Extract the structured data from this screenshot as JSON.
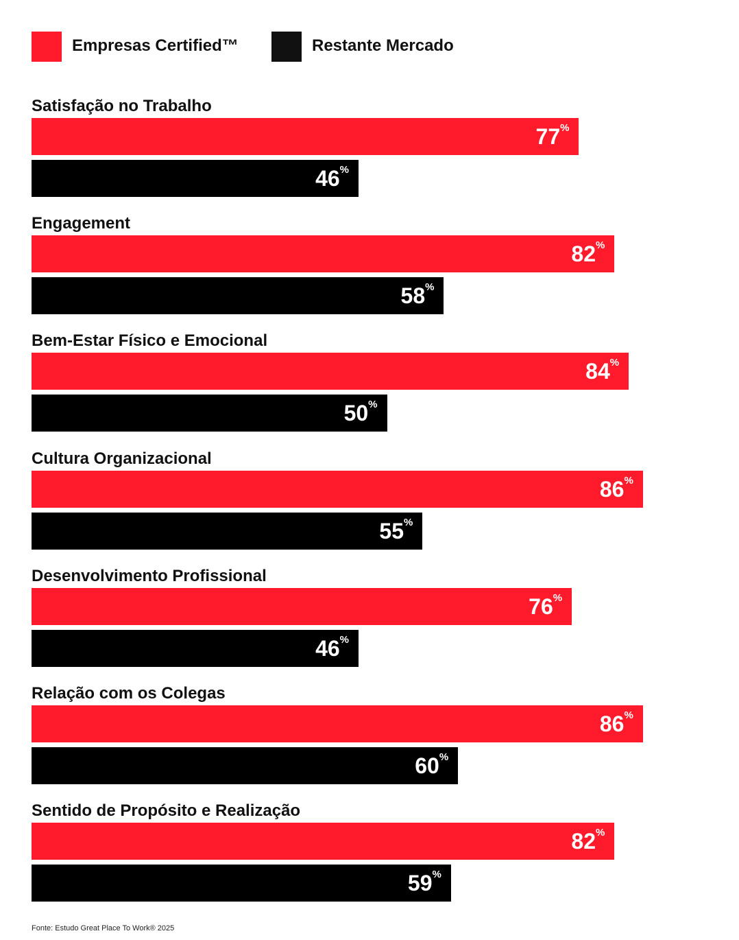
{
  "legend": {
    "items": [
      {
        "label": "Empresas Certified™",
        "color": "#ff1a2c"
      },
      {
        "label": "Restante Mercado",
        "color": "#111111"
      }
    ]
  },
  "chart_data": {
    "type": "bar",
    "orientation": "horizontal",
    "categories": [
      "Satisfação no Trabalho",
      "Engagement",
      "Bem-Estar Físico e Emocional",
      "Cultura Organizacional",
      "Desenvolvimento Profissional",
      "Relação com os Colegas",
      "Sentido de Propósito e Realização"
    ],
    "series": [
      {
        "name": "Empresas Certified™",
        "color": "#ff1a2c",
        "values": [
          77,
          82,
          84,
          86,
          76,
          86,
          82
        ]
      },
      {
        "name": "Restante Mercado",
        "color": "#000000",
        "values": [
          46,
          58,
          50,
          55,
          46,
          60,
          59
        ]
      }
    ],
    "value_suffix": "%",
    "xlim": [
      0,
      100
    ],
    "grid": false,
    "legend_position": "top-left"
  },
  "footnote": "Fonte: Estudo Great Place To Work® 2025"
}
